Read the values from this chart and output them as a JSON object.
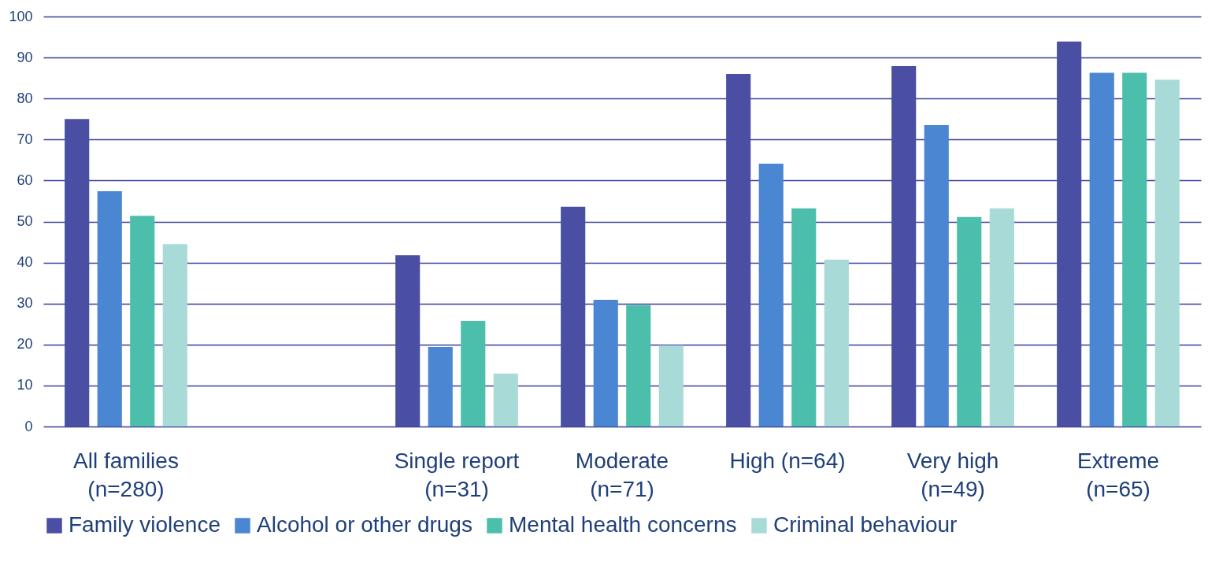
{
  "chart_data": {
    "type": "bar",
    "categories": [
      "All families\n(n=280)",
      null,
      "Single report\n(n=31)",
      "Moderate\n(n=71)",
      "High (n=64)",
      "Very high\n(n=49)",
      "Extreme\n(n=65)"
    ],
    "series": [
      {
        "name": "Family violence",
        "color": "#4a4fa3",
        "values": [
          75,
          null,
          41.8,
          53.6,
          86,
          87.9,
          93.9
        ]
      },
      {
        "name": "Alcohol or other drugs",
        "color": "#4a86d1",
        "values": [
          57.4,
          null,
          19.4,
          30.9,
          64.1,
          73.5,
          86.3
        ]
      },
      {
        "name": "Mental health concerns",
        "color": "#4bbfab",
        "values": [
          51.4,
          null,
          25.7,
          29.6,
          53.2,
          51.1,
          86.3
        ]
      },
      {
        "name": "Criminal behaviour",
        "color": "#a8dbd8",
        "values": [
          44.5,
          null,
          12.9,
          19.8,
          40.7,
          53.2,
          84.6
        ]
      }
    ],
    "ylim": [
      0,
      100
    ],
    "yticks": [
      0,
      10,
      20,
      30,
      40,
      50,
      60,
      70,
      80,
      90,
      100
    ],
    "grid": "y",
    "legend": "bottom"
  }
}
